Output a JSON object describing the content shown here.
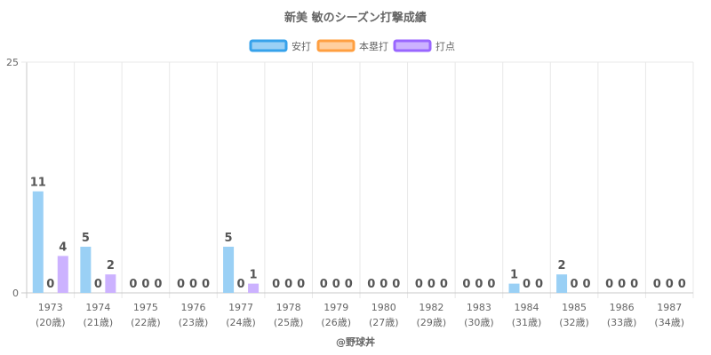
{
  "chart_data": {
    "type": "bar",
    "title": "新美 敏のシーズン打撃成績",
    "ylim": [
      0,
      25
    ],
    "y_ticks": [
      "0",
      "25"
    ],
    "grid": true,
    "legend_position": "top-center",
    "categories": [
      "1973",
      "1974",
      "1975",
      "1976",
      "1977",
      "1978",
      "1979",
      "1980",
      "1982",
      "1983",
      "1984",
      "1985",
      "1986",
      "1987"
    ],
    "category_sublabels": [
      "(20歳)",
      "(21歳)",
      "(22歳)",
      "(23歳)",
      "(24歳)",
      "(25歳)",
      "(26歳)",
      "(27歳)",
      "(29歳)",
      "(30歳)",
      "(31歳)",
      "(32歳)",
      "(33歳)",
      "(34歳)"
    ],
    "series": [
      {
        "name": "安打",
        "values": [
          11,
          5,
          0,
          0,
          5,
          0,
          0,
          0,
          0,
          0,
          1,
          2,
          0,
          0
        ],
        "color": "#9ad0f5",
        "border": "#36a2eb"
      },
      {
        "name": "本塁打",
        "values": [
          0,
          0,
          0,
          0,
          0,
          0,
          0,
          0,
          0,
          0,
          0,
          0,
          0,
          0
        ],
        "color": "#ffcf9f",
        "border": "#ff9f40"
      },
      {
        "name": "打点",
        "values": [
          4,
          2,
          0,
          0,
          1,
          0,
          0,
          0,
          0,
          0,
          0,
          0,
          0,
          0
        ],
        "color": "#ccb2ff",
        "border": "#9966ff"
      }
    ],
    "credit": "@野球丼"
  }
}
